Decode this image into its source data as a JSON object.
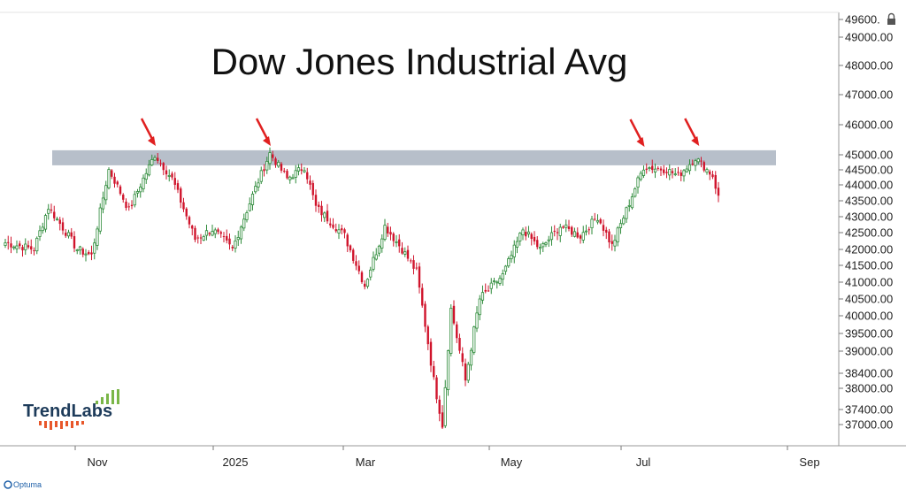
{
  "chart_data": {
    "type": "candlestick",
    "title": "Dow Jones Industrial Avg",
    "ylim": [
      36800,
      49800
    ],
    "y_ticks": [
      "49600.",
      "49000.00",
      "48000.00",
      "47000.00",
      "46000.00",
      "45000.00",
      "44500.00",
      "44000.00",
      "43500.00",
      "43000.00",
      "42500.00",
      "42000.00",
      "41500.00",
      "41000.00",
      "40500.00",
      "40000.00",
      "39500.00",
      "39000.00",
      "38400.00",
      "38000.00",
      "37400.00",
      "37000.00"
    ],
    "x_ticks": [
      "Nov",
      "2025",
      "Mar",
      "May",
      "Jul",
      "Sep"
    ],
    "resistance_zone": [
      44650,
      45150
    ],
    "grid": false,
    "legend": "none",
    "colors": {
      "up": "#2e8b3a",
      "down": "#d0142c",
      "zone": "#b7bfca",
      "arrow": "#e02020"
    },
    "keypoints": [
      [
        0,
        42200
      ],
      [
        10,
        42000
      ],
      [
        15,
        43300
      ],
      [
        25,
        42000
      ],
      [
        30,
        41800
      ],
      [
        36,
        44500
      ],
      [
        43,
        43200
      ],
      [
        52,
        45000
      ],
      [
        58,
        44200
      ],
      [
        66,
        42300
      ],
      [
        72,
        42600
      ],
      [
        79,
        42000
      ],
      [
        84,
        43200
      ],
      [
        92,
        45050
      ],
      [
        98,
        44200
      ],
      [
        104,
        44600
      ],
      [
        108,
        43300
      ],
      [
        118,
        42400
      ],
      [
        125,
        40900
      ],
      [
        132,
        42700
      ],
      [
        138,
        42000
      ],
      [
        143,
        41300
      ],
      [
        149,
        38200
      ],
      [
        152,
        37000
      ],
      [
        155,
        40200
      ],
      [
        160,
        38200
      ],
      [
        165,
        40500
      ],
      [
        173,
        41200
      ],
      [
        180,
        42600
      ],
      [
        186,
        42000
      ],
      [
        193,
        42700
      ],
      [
        200,
        42400
      ],
      [
        206,
        43000
      ],
      [
        211,
        42100
      ],
      [
        216,
        43200
      ],
      [
        222,
        44600
      ],
      [
        230,
        44500
      ],
      [
        234,
        44300
      ],
      [
        240,
        44900
      ],
      [
        246,
        44300
      ],
      [
        248,
        43600
      ]
    ],
    "arrows": [
      52,
      92,
      222,
      241
    ]
  },
  "branding": {
    "logo": "TrendLabs",
    "watermark": "Optuma"
  }
}
